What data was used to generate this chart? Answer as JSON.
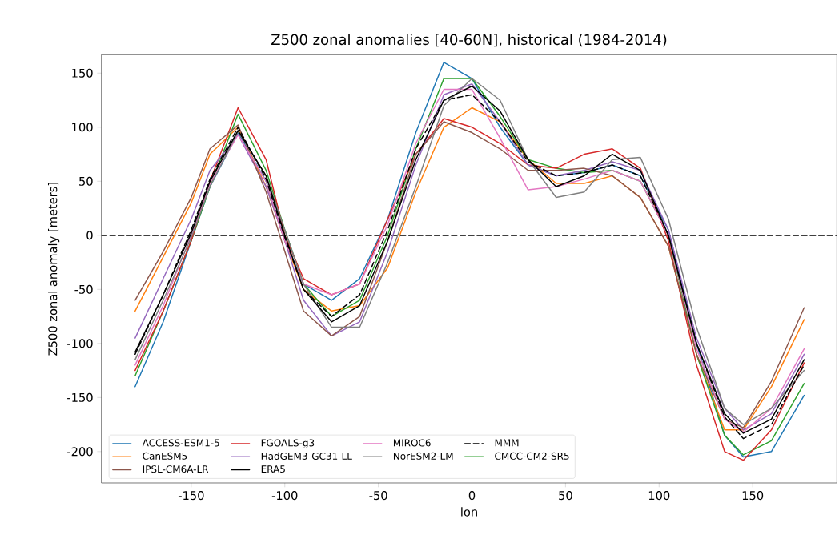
{
  "chart_data": {
    "type": "line",
    "title": "Z500 zonal anomalies [40-60N], historical (1984-2014)",
    "xlabel": "lon",
    "ylabel": "Z500 zonal anomaly [meters]",
    "x": [
      -180,
      -165,
      -150,
      -140,
      -125,
      -110,
      -100,
      -90,
      -75,
      -60,
      -45,
      -30,
      -15,
      0,
      15,
      30,
      45,
      60,
      75,
      90,
      105,
      120,
      135,
      145,
      160,
      177.5
    ],
    "xlim": [
      -198,
      195
    ],
    "ylim": [
      -229,
      167
    ],
    "xticks": [
      -150,
      -100,
      -50,
      0,
      50,
      100,
      150
    ],
    "yticks": [
      -200,
      -150,
      -100,
      -50,
      0,
      50,
      100,
      150
    ],
    "legend": "bottom left",
    "line_style": "solid",
    "marker": "none",
    "grid": false,
    "ref_lines": [
      {
        "axis": "y",
        "value": 0,
        "color": "#000000",
        "line_style": "dashed"
      }
    ],
    "series": [
      {
        "name": "ACCESS-ESM1-5",
        "color": "#1f77b4",
        "values": [
          -140,
          -80,
          -5,
          45,
          95,
          50,
          -5,
          -45,
          -60,
          -40,
          15,
          95,
          160,
          145,
          100,
          65,
          55,
          58,
          65,
          55,
          5,
          -100,
          -185,
          -205,
          -200,
          -148
        ]
      },
      {
        "name": "CanESM5",
        "color": "#ff7f0e",
        "values": [
          -70,
          -20,
          30,
          75,
          100,
          45,
          -5,
          -50,
          -70,
          -65,
          -30,
          40,
          100,
          118,
          105,
          70,
          48,
          48,
          55,
          35,
          -10,
          -110,
          -180,
          -180,
          -140,
          -78
        ]
      },
      {
        "name": "CMCC-CM2-SR5",
        "color": "#2ca02c",
        "values": [
          -130,
          -70,
          -5,
          45,
          112,
          60,
          5,
          -45,
          -75,
          -60,
          0,
          80,
          145,
          145,
          110,
          70,
          62,
          58,
          60,
          50,
          0,
          -110,
          -185,
          -203,
          -190,
          -137
        ]
      },
      {
        "name": "FGOALS-g3",
        "color": "#d62728",
        "values": [
          -125,
          -70,
          -5,
          50,
          118,
          70,
          0,
          -40,
          -55,
          -45,
          15,
          75,
          108,
          100,
          85,
          65,
          62,
          75,
          80,
          62,
          -5,
          -120,
          -200,
          -208,
          -180,
          -118
        ]
      },
      {
        "name": "HadGEM3-GC31-LL",
        "color": "#9467bd",
        "values": [
          -95,
          -40,
          15,
          60,
          93,
          45,
          -5,
          -60,
          -93,
          -80,
          -15,
          65,
          130,
          140,
          105,
          65,
          55,
          60,
          68,
          60,
          5,
          -95,
          -160,
          -180,
          -165,
          -110
        ]
      },
      {
        "name": "IPSL-CM6A-LR",
        "color": "#8c564b",
        "values": [
          -60,
          -15,
          35,
          80,
          102,
          40,
          -15,
          -70,
          -93,
          -75,
          -5,
          75,
          105,
          95,
          80,
          60,
          60,
          62,
          55,
          35,
          -10,
          -110,
          -170,
          -178,
          -135,
          -67
        ]
      },
      {
        "name": "MIROC6",
        "color": "#e377c2",
        "values": [
          -120,
          -65,
          0,
          48,
          93,
          50,
          -5,
          -45,
          -55,
          -45,
          10,
          85,
          135,
          135,
          90,
          42,
          45,
          52,
          60,
          50,
          0,
          -105,
          -170,
          -182,
          -160,
          -105
        ]
      },
      {
        "name": "NorESM2-LM",
        "color": "#7f7f7f",
        "values": [
          -115,
          -60,
          -2,
          45,
          96,
          55,
          5,
          -45,
          -85,
          -85,
          -25,
          45,
          120,
          145,
          125,
          70,
          35,
          40,
          70,
          72,
          15,
          -85,
          -160,
          -175,
          -160,
          -125
        ]
      },
      {
        "name": "ERA5",
        "color": "#000000",
        "values": [
          -108,
          -55,
          2,
          50,
          97,
          55,
          0,
          -50,
          -80,
          -65,
          -5,
          70,
          125,
          138,
          115,
          70,
          45,
          55,
          75,
          60,
          0,
          -100,
          -165,
          -183,
          -170,
          -115
        ]
      },
      {
        "name": "MMM",
        "color": "#000000",
        "line_style": "dashed",
        "values": [
          -110,
          -55,
          5,
          52,
          100,
          52,
          -2,
          -50,
          -75,
          -55,
          5,
          80,
          125,
          130,
          105,
          68,
          55,
          58,
          65,
          55,
          0,
          -100,
          -168,
          -188,
          -175,
          -120
        ]
      }
    ]
  }
}
